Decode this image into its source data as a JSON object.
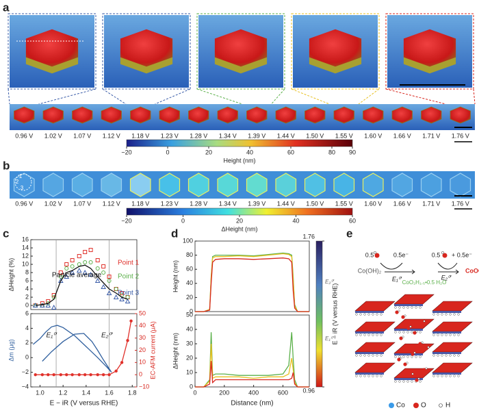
{
  "panel_labels": [
    "a",
    "b",
    "c",
    "d",
    "e"
  ],
  "voltages": [
    "0.96 V",
    "1.02 V",
    "1.07 V",
    "1.12 V",
    "1.18 V",
    "1.23 V",
    "1.28 V",
    "1.34 V",
    "1.39 V",
    "1.44 V",
    "1.50 V",
    "1.55 V",
    "1.60 V",
    "1.66 V",
    "1.71 V",
    "1.76 V"
  ],
  "point_marks": [
    "1",
    "2",
    "3"
  ],
  "colorbar_a": {
    "label": "Height (nm)",
    "lim": [
      -20,
      90
    ],
    "ticks": [
      {
        "value": -20,
        "label": "−20"
      },
      0,
      20,
      40,
      60,
      80,
      90
    ]
  },
  "colorbar_b": {
    "label": "ΔHeight (nm)",
    "lim": [
      -20,
      60
    ],
    "ticks": [
      {
        "value": -20,
        "label": "−20"
      },
      0,
      20,
      40,
      60
    ]
  },
  "colorbar_d": {
    "label": "E − iR (V versus RHE)",
    "lim": [
      0.96,
      1.76
    ],
    "ticks": [
      0.96,
      1.76
    ],
    "annotations": [
      "E₂⁰′",
      "E₁⁰′"
    ]
  },
  "chart_data": [
    {
      "type": "line",
      "ylabel": "ΔHeight (%)",
      "xlim": [
        0.92,
        1.84
      ],
      "ylim": [
        -1,
        16
      ],
      "yticks": [
        0,
        2,
        4,
        6,
        8,
        10,
        12,
        14,
        16
      ],
      "x": [
        0.96,
        1.02,
        1.07,
        1.12,
        1.18,
        1.23,
        1.28,
        1.34,
        1.39,
        1.44,
        1.5,
        1.55,
        1.6,
        1.66,
        1.71,
        1.76
      ],
      "vlines": [
        1.14,
        1.6
      ],
      "series": [
        {
          "name": "Point 1",
          "color": "#e0302a",
          "marker": "square",
          "line": false,
          "values": [
            0,
            0.5,
            1,
            2.5,
            8,
            10,
            11,
            12,
            13,
            13.5,
            11,
            9.5,
            7,
            4,
            3,
            2
          ]
        },
        {
          "name": "Point 2",
          "color": "#5bb04a",
          "marker": "circle",
          "line": false,
          "values": [
            0,
            0,
            0.5,
            2,
            7,
            9,
            9.5,
            10,
            10.5,
            10.5,
            9,
            8,
            6,
            4,
            2.5,
            2
          ]
        },
        {
          "name": "Point 3",
          "color": "#3a5ca8",
          "marker": "triangle",
          "line": false,
          "values": [
            0,
            0,
            0,
            -0.5,
            6,
            7,
            8,
            8.5,
            8,
            7.5,
            6,
            4.5,
            3,
            2,
            1.5,
            1
          ]
        },
        {
          "name": "Particle average",
          "color": "#111111",
          "values": [
            0,
            0.2,
            0.5,
            1.5,
            6,
            8,
            8.5,
            9.5,
            9.8,
            9,
            7,
            5.5,
            4,
            3,
            2,
            1.5
          ]
        }
      ]
    },
    {
      "type": "line",
      "xlabel": "E − iR (V versus RHE)",
      "ylabel": "Δm (μg)",
      "y2label": "EC-AFM current (μA)",
      "xlim": [
        0.92,
        1.84
      ],
      "xticks": [
        {
          "value": 1,
          "label": "1.0"
        },
        1.2,
        1.4,
        1.6,
        1.8
      ],
      "ylim": [
        -4,
        6
      ],
      "yticks": [
        {
          "value": -4,
          "label": "−4"
        },
        {
          "value": -2,
          "label": "−2"
        },
        0,
        2,
        4,
        6
      ],
      "y2lim": [
        -10,
        50
      ],
      "y2ticks": [
        {
          "value": -10,
          "label": "−10"
        },
        0,
        10,
        20,
        30,
        40,
        50
      ],
      "vlines": [
        1.14,
        1.6
      ],
      "annotations": [
        "E₁⁰′",
        "E₂⁰′"
      ],
      "series": [
        {
          "color": "#2f5f9e",
          "x": [
            0.94,
            1.0,
            1.05,
            1.1,
            1.15,
            1.2,
            1.3,
            1.4,
            1.5,
            1.58,
            1.62,
            1.55,
            1.5,
            1.45,
            1.38,
            1.3,
            1.2,
            1.1,
            1.02
          ],
          "values": [
            1.8,
            2.6,
            3.5,
            4.2,
            4.4,
            4.1,
            3.0,
            1.5,
            0,
            -1.3,
            -2,
            -0.3,
            1.0,
            2.2,
            3.3,
            3.2,
            2.2,
            0.8,
            -0.5
          ]
        },
        {
          "color": "#e0302a",
          "marker": "dot",
          "axis": "y2",
          "x": [
            0.96,
            1.02,
            1.07,
            1.12,
            1.18,
            1.23,
            1.28,
            1.34,
            1.39,
            1.44,
            1.5,
            1.55,
            1.6,
            1.66,
            1.71,
            1.76,
            1.79
          ],
          "values": [
            0,
            0,
            0,
            0,
            0,
            0,
            0,
            0,
            0,
            0,
            0,
            0,
            0,
            3,
            10,
            28,
            44
          ]
        }
      ]
    },
    {
      "type": "line",
      "ylabel": "Height (nm)",
      "xlim": [
        0,
        780
      ],
      "ylim": [
        0,
        100
      ],
      "yticks": [
        0,
        20,
        40,
        60,
        80,
        100
      ],
      "x": [
        0,
        60,
        100,
        110,
        120,
        140,
        200,
        300,
        400,
        500,
        600,
        640,
        660,
        670,
        680,
        700,
        780
      ],
      "series": [
        {
          "color": "#5bb04a",
          "values": [
            0,
            0,
            3,
            50,
            78,
            80,
            80,
            80,
            79,
            81,
            83,
            82,
            80,
            50,
            10,
            0,
            0
          ]
        },
        {
          "color": "#e8c020",
          "values": [
            0,
            0,
            3,
            48,
            76,
            78,
            78,
            79,
            78,
            80,
            82,
            81,
            78,
            45,
            8,
            0,
            0
          ]
        },
        {
          "color": "#d8261e",
          "values": [
            0,
            0,
            2,
            40,
            70,
            74,
            75,
            75,
            74,
            75,
            76,
            75,
            70,
            30,
            5,
            0,
            0
          ]
        }
      ]
    },
    {
      "type": "line",
      "ylabel": "ΔHeight (nm)",
      "xlabel": "Distance (nm)",
      "xlim": [
        0,
        780
      ],
      "xticks": [
        0,
        200,
        400,
        600
      ],
      "ylim": [
        0,
        50
      ],
      "yticks": [
        0,
        10,
        20,
        30,
        40,
        50
      ],
      "x": [
        0,
        60,
        100,
        110,
        120,
        140,
        200,
        300,
        400,
        500,
        600,
        640,
        660,
        670,
        680,
        700,
        780
      ],
      "series": [
        {
          "color": "#5bb04a",
          "values": [
            0,
            0,
            5,
            38,
            8,
            9,
            9,
            8,
            8,
            8,
            9,
            15,
            38,
            20,
            5,
            0,
            0
          ]
        },
        {
          "color": "#e8c020",
          "values": [
            0,
            0,
            4,
            30,
            6,
            7,
            7,
            7,
            6,
            7,
            7,
            9,
            20,
            12,
            3,
            0,
            0
          ]
        },
        {
          "color": "#d8261e",
          "values": [
            0,
            0,
            2,
            18,
            3,
            5,
            5,
            5,
            5,
            5,
            5,
            5,
            6,
            10,
            2,
            0,
            0
          ]
        }
      ]
    }
  ],
  "panel_e": {
    "coef_left": "0.5",
    "electrons_left": "0.5e⁻",
    "reactant": "Co(OH)₂",
    "e1": "E₁⁰′",
    "intermediate": "CoO₂H₁.₅•0.5 H₂O",
    "e2": "E₂⁰′",
    "coef_right": "0.5",
    "electrons_right": "+ 0.5e⁻",
    "product": "CoOOH",
    "legend": [
      "Co",
      "O",
      "H"
    ]
  }
}
